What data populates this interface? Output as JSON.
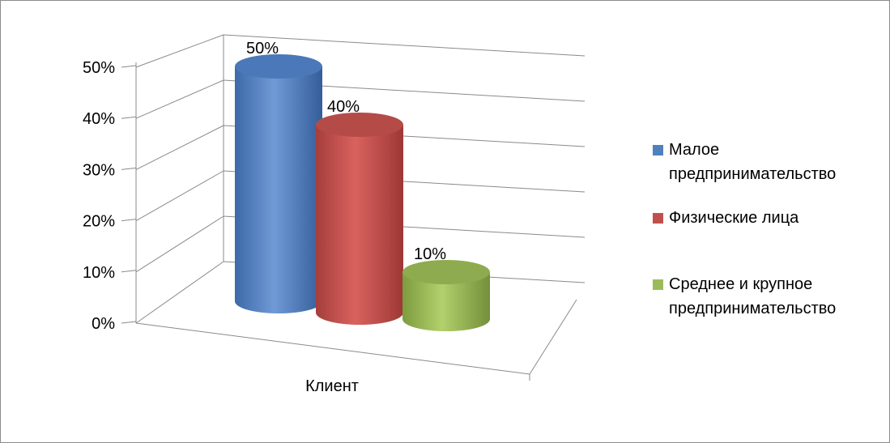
{
  "chart_data": {
    "type": "bar",
    "categories": [
      "Клиент"
    ],
    "series": [
      {
        "name": "Малое предпринимательство",
        "values": [
          50
        ],
        "label": "50%",
        "color": "#4f81bd"
      },
      {
        "name": "Физические лица",
        "values": [
          40
        ],
        "label": "40%",
        "color": "#c0504d"
      },
      {
        "name": "Среднее и крупное предпринимательство",
        "values": [
          10
        ],
        "label": "10%",
        "color": "#9bbb59"
      }
    ],
    "xlabel": "Клиент",
    "yticks": [
      "0%",
      "10%",
      "20%",
      "30%",
      "40%",
      "50%"
    ],
    "ylim": [
      0,
      50
    ],
    "grid": true,
    "legend": "right",
    "style": "3d-cylinder"
  }
}
